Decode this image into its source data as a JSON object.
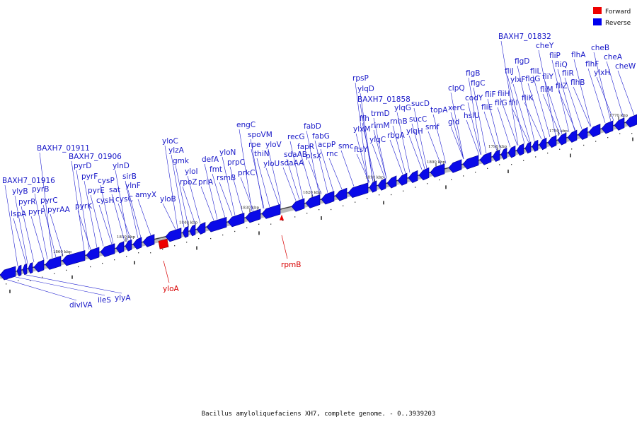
{
  "legend": [
    {
      "label": "Forward",
      "color": "#ee0000"
    },
    {
      "label": "Reverse",
      "color": "#0000ee"
    }
  ],
  "caption": "Bacillus amyloliquefaciens XH7, complete genome. - 0..3939203",
  "scale_labels": [
    "1860 kbp",
    "1850 kbp",
    "1840 kbp",
    "1830 kbp",
    "1820 kbp",
    "1810 kbp",
    "1800 kbp",
    "1790 kbp",
    "1780 kbp",
    "1770 kbp"
  ],
  "reverse_genes": [
    "BAXH7_01916",
    "ylyB",
    "pyrR",
    "lspA",
    "pyrP",
    "pyrB",
    "pyrC",
    "pyrAA",
    "BAXH7_01911",
    "pyrK",
    "pyrD",
    "pyrF",
    "pyrE",
    "BAXH7_01906",
    "cysP",
    "cysH",
    "sat",
    "cysC",
    "ylnD",
    "sirB",
    "ylnF",
    "amyX",
    "yloB",
    "yloC",
    "ylzA",
    "gmk",
    "yloI",
    "rpoZ",
    "defA",
    "fmt",
    "priA",
    "yloN",
    "rsmB",
    "prpC",
    "prkC",
    "engC",
    "rpe",
    "spoVM",
    "thiN",
    "yloV",
    "yloU",
    "sdaAB",
    "sdaAA",
    "recG",
    "fapR",
    "fabD",
    "plsX",
    "fabG",
    "acpP",
    "rnc",
    "smc",
    "ftsY",
    "rpsP",
    "ylqD",
    "ffh",
    "ylxM",
    "BAXH7_01858",
    "trmD",
    "rimM",
    "ylqC",
    "rbgA",
    "rnhB",
    "ylqG",
    "ylqH",
    "sucC",
    "sucD",
    "smf",
    "topA",
    "gid",
    "clpQ",
    "xerC",
    "hslU",
    "codY",
    "flgB",
    "flgC",
    "fliE",
    "fliF",
    "fliG",
    "fliH",
    "fliI",
    "fliJ",
    "ylxF",
    "fliK",
    "flgD",
    "flgG",
    "fliL",
    "fliM",
    "fliY",
    "fliP",
    "BAXH7_01832",
    "cheY",
    "fliQ",
    "fliR",
    "fliZ",
    "flhB",
    "flhA",
    "flhF",
    "ylxH",
    "cheB",
    "cheA",
    "cheW",
    "divIVA",
    "ileS",
    "ylyA"
  ],
  "forward_genes": [
    "yloA",
    "rpmB"
  ]
}
